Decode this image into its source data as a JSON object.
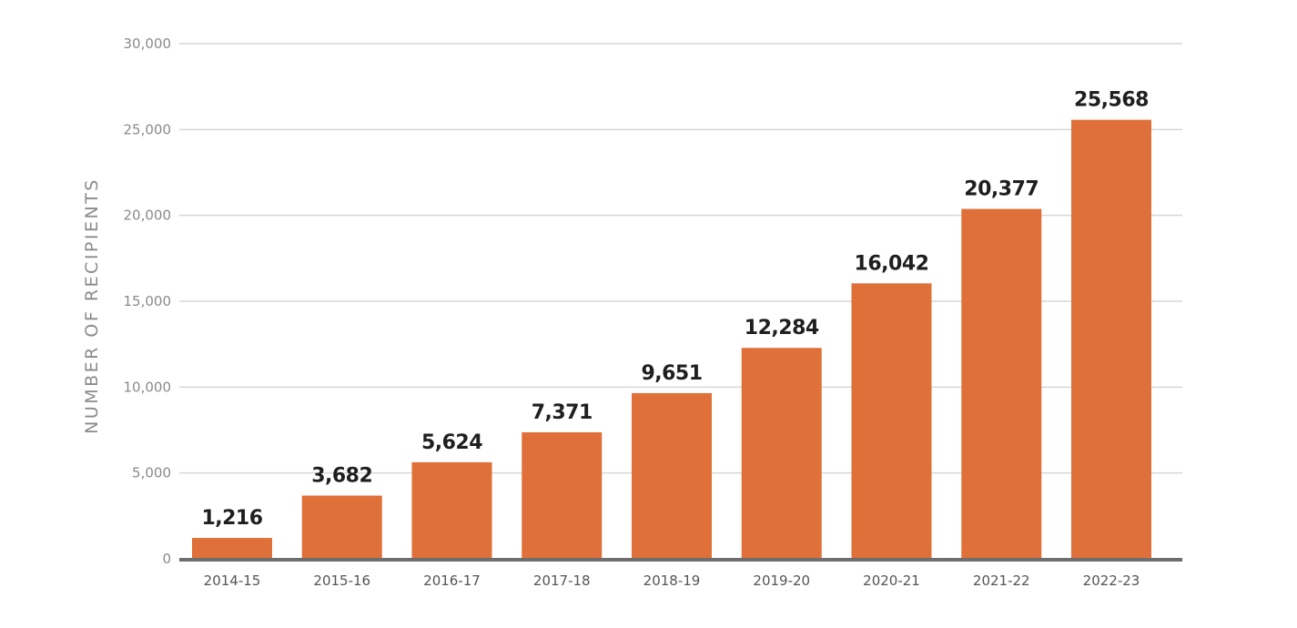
{
  "chart_data": {
    "type": "bar",
    "ylabel": "NUMBER OF RECIPIENTS",
    "categories": [
      "2014-15",
      "2015-16",
      "2016-17",
      "2017-18",
      "2018-19",
      "2019-20",
      "2020-21",
      "2021-22",
      "2022-23"
    ],
    "values": [
      1216,
      3682,
      5624,
      7371,
      9651,
      12284,
      16042,
      20377,
      25568
    ],
    "value_labels": [
      "1,216",
      "3,682",
      "5,624",
      "7,371",
      "9,651",
      "12,284",
      "16,042",
      "20,377",
      "25,568"
    ],
    "yticks": [
      0,
      5000,
      10000,
      15000,
      20000,
      25000,
      30000
    ],
    "ytick_labels": [
      "0",
      "5,000",
      "10,000",
      "15,000",
      "20,000",
      "25,000",
      "30,000"
    ],
    "ylim": [
      0,
      30000
    ],
    "grid": true,
    "legend": "none",
    "bar_color": "#e07039",
    "axis_color": "#6e6e6e"
  }
}
